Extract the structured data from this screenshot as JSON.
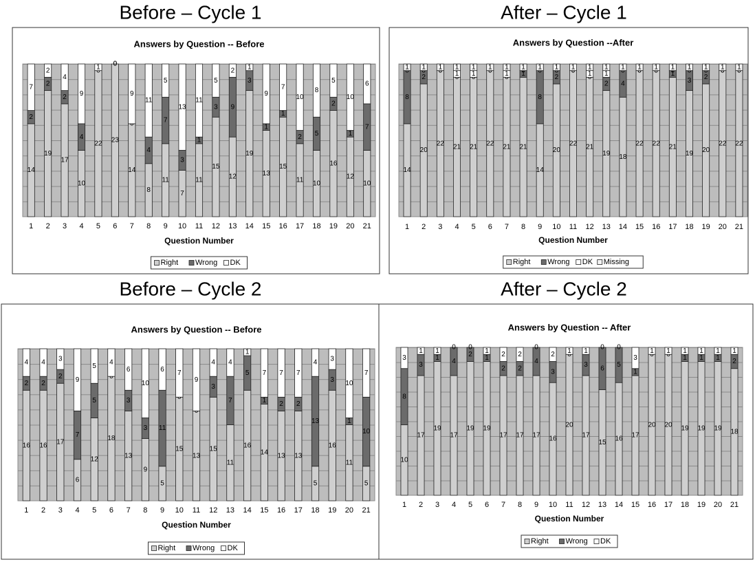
{
  "chart_data": [
    {
      "type": "stacked-bar",
      "heading": "Before – Cycle 1",
      "title": "Answers by Question -- Before",
      "x_label": "Question Number",
      "categories": [
        "1",
        "2",
        "3",
        "4",
        "5",
        "6",
        "7",
        "8",
        "9",
        "10",
        "11",
        "12",
        "13",
        "14",
        "15",
        "16",
        "17",
        "18",
        "19",
        "20",
        "21"
      ],
      "ylim": [
        0,
        23
      ],
      "series": [
        {
          "name": "Right",
          "color": "#cfcfcf",
          "values": [
            14,
            19,
            17,
            10,
            22,
            23,
            14,
            8,
            11,
            7,
            11,
            15,
            12,
            19,
            13,
            15,
            11,
            10,
            16,
            12,
            10
          ]
        },
        {
          "name": "Wrong",
          "color": "#6b6b6b",
          "values": [
            2,
            2,
            2,
            4,
            0,
            0,
            0,
            4,
            7,
            3,
            1,
            3,
            9,
            3,
            1,
            1,
            2,
            5,
            2,
            1,
            7
          ]
        },
        {
          "name": "DK",
          "color": "#ffffff",
          "values": [
            7,
            2,
            4,
            9,
            1,
            0,
            9,
            11,
            5,
            13,
            11,
            5,
            2,
            1,
            9,
            7,
            10,
            8,
            5,
            10,
            6
          ]
        }
      ]
    },
    {
      "type": "stacked-bar",
      "heading": "After – Cycle 1",
      "title": "Answers by Question --After",
      "x_label": "Question Number",
      "categories": [
        "1",
        "2",
        "3",
        "4",
        "5",
        "6",
        "7",
        "8",
        "9",
        "10",
        "11",
        "12",
        "13",
        "14",
        "15",
        "16",
        "17",
        "18",
        "19",
        "20",
        "21"
      ],
      "ylim": [
        0,
        23
      ],
      "series": [
        {
          "name": "Right",
          "color": "#cfcfcf",
          "values": [
            14,
            20,
            22,
            21,
            21,
            22,
            21,
            21,
            14,
            20,
            22,
            21,
            19,
            18,
            22,
            22,
            21,
            19,
            20,
            22,
            22
          ]
        },
        {
          "name": "Wrong",
          "color": "#6b6b6b",
          "values": [
            8,
            2,
            0,
            0,
            0,
            0,
            0,
            1,
            8,
            2,
            0,
            0,
            2,
            4,
            0,
            0,
            1,
            3,
            2,
            0,
            0
          ]
        },
        {
          "name": "DK",
          "color": "#ffffff",
          "values": [
            0,
            0,
            0,
            1,
            1,
            0,
            1,
            0,
            0,
            0,
            0,
            1,
            1,
            0,
            0,
            0,
            0,
            0,
            0,
            0,
            0
          ]
        },
        {
          "name": "Missing",
          "color": "#f4f4f4",
          "values": [
            1,
            1,
            1,
            1,
            1,
            1,
            1,
            1,
            1,
            1,
            1,
            1,
            1,
            1,
            1,
            1,
            1,
            1,
            1,
            1,
            1
          ]
        }
      ]
    },
    {
      "type": "stacked-bar",
      "heading": "Before – Cycle 2",
      "title": "Answers by Question -- Before",
      "x_label": "Question Number",
      "categories": [
        "1",
        "2",
        "3",
        "4",
        "5",
        "6",
        "7",
        "8",
        "9",
        "10",
        "11",
        "12",
        "13",
        "14",
        "15",
        "16",
        "17",
        "18",
        "19",
        "20",
        "21"
      ],
      "ylim": [
        0,
        22
      ],
      "series": [
        {
          "name": "Right",
          "color": "#cfcfcf",
          "values": [
            16,
            16,
            17,
            6,
            12,
            18,
            13,
            9,
            5,
            15,
            13,
            15,
            11,
            16,
            14,
            13,
            13,
            5,
            16,
            11,
            5
          ]
        },
        {
          "name": "Wrong",
          "color": "#6b6b6b",
          "values": [
            2,
            2,
            2,
            7,
            5,
            0,
            3,
            3,
            11,
            0,
            0,
            3,
            7,
            5,
            1,
            2,
            2,
            13,
            3,
            1,
            10
          ]
        },
        {
          "name": "DK",
          "color": "#ffffff",
          "values": [
            4,
            4,
            3,
            9,
            5,
            4,
            6,
            10,
            6,
            7,
            9,
            4,
            4,
            1,
            7,
            7,
            7,
            4,
            3,
            10,
            7
          ]
        }
      ]
    },
    {
      "type": "stacked-bar",
      "heading": "After – Cycle 2",
      "title": "Answers by Question -- After",
      "x_label": "Question Number",
      "categories": [
        "1",
        "2",
        "3",
        "4",
        "5",
        "6",
        "7",
        "8",
        "9",
        "10",
        "11",
        "12",
        "13",
        "14",
        "15",
        "16",
        "17",
        "18",
        "19",
        "20",
        "21"
      ],
      "ylim": [
        0,
        21
      ],
      "series": [
        {
          "name": "Right",
          "color": "#cfcfcf",
          "values": [
            10,
            17,
            19,
            17,
            19,
            19,
            17,
            17,
            17,
            16,
            20,
            17,
            15,
            16,
            17,
            20,
            20,
            19,
            19,
            19,
            18
          ]
        },
        {
          "name": "Wrong",
          "color": "#6b6b6b",
          "values": [
            8,
            3,
            1,
            4,
            2,
            1,
            2,
            2,
            4,
            3,
            0,
            3,
            6,
            5,
            1,
            0,
            0,
            1,
            1,
            1,
            2
          ]
        },
        {
          "name": "DK",
          "color": "#ffffff",
          "values": [
            3,
            1,
            1,
            0,
            0,
            1,
            2,
            2,
            0,
            2,
            1,
            1,
            0,
            0,
            3,
            1,
            1,
            1,
            1,
            1,
            1
          ]
        }
      ]
    }
  ]
}
